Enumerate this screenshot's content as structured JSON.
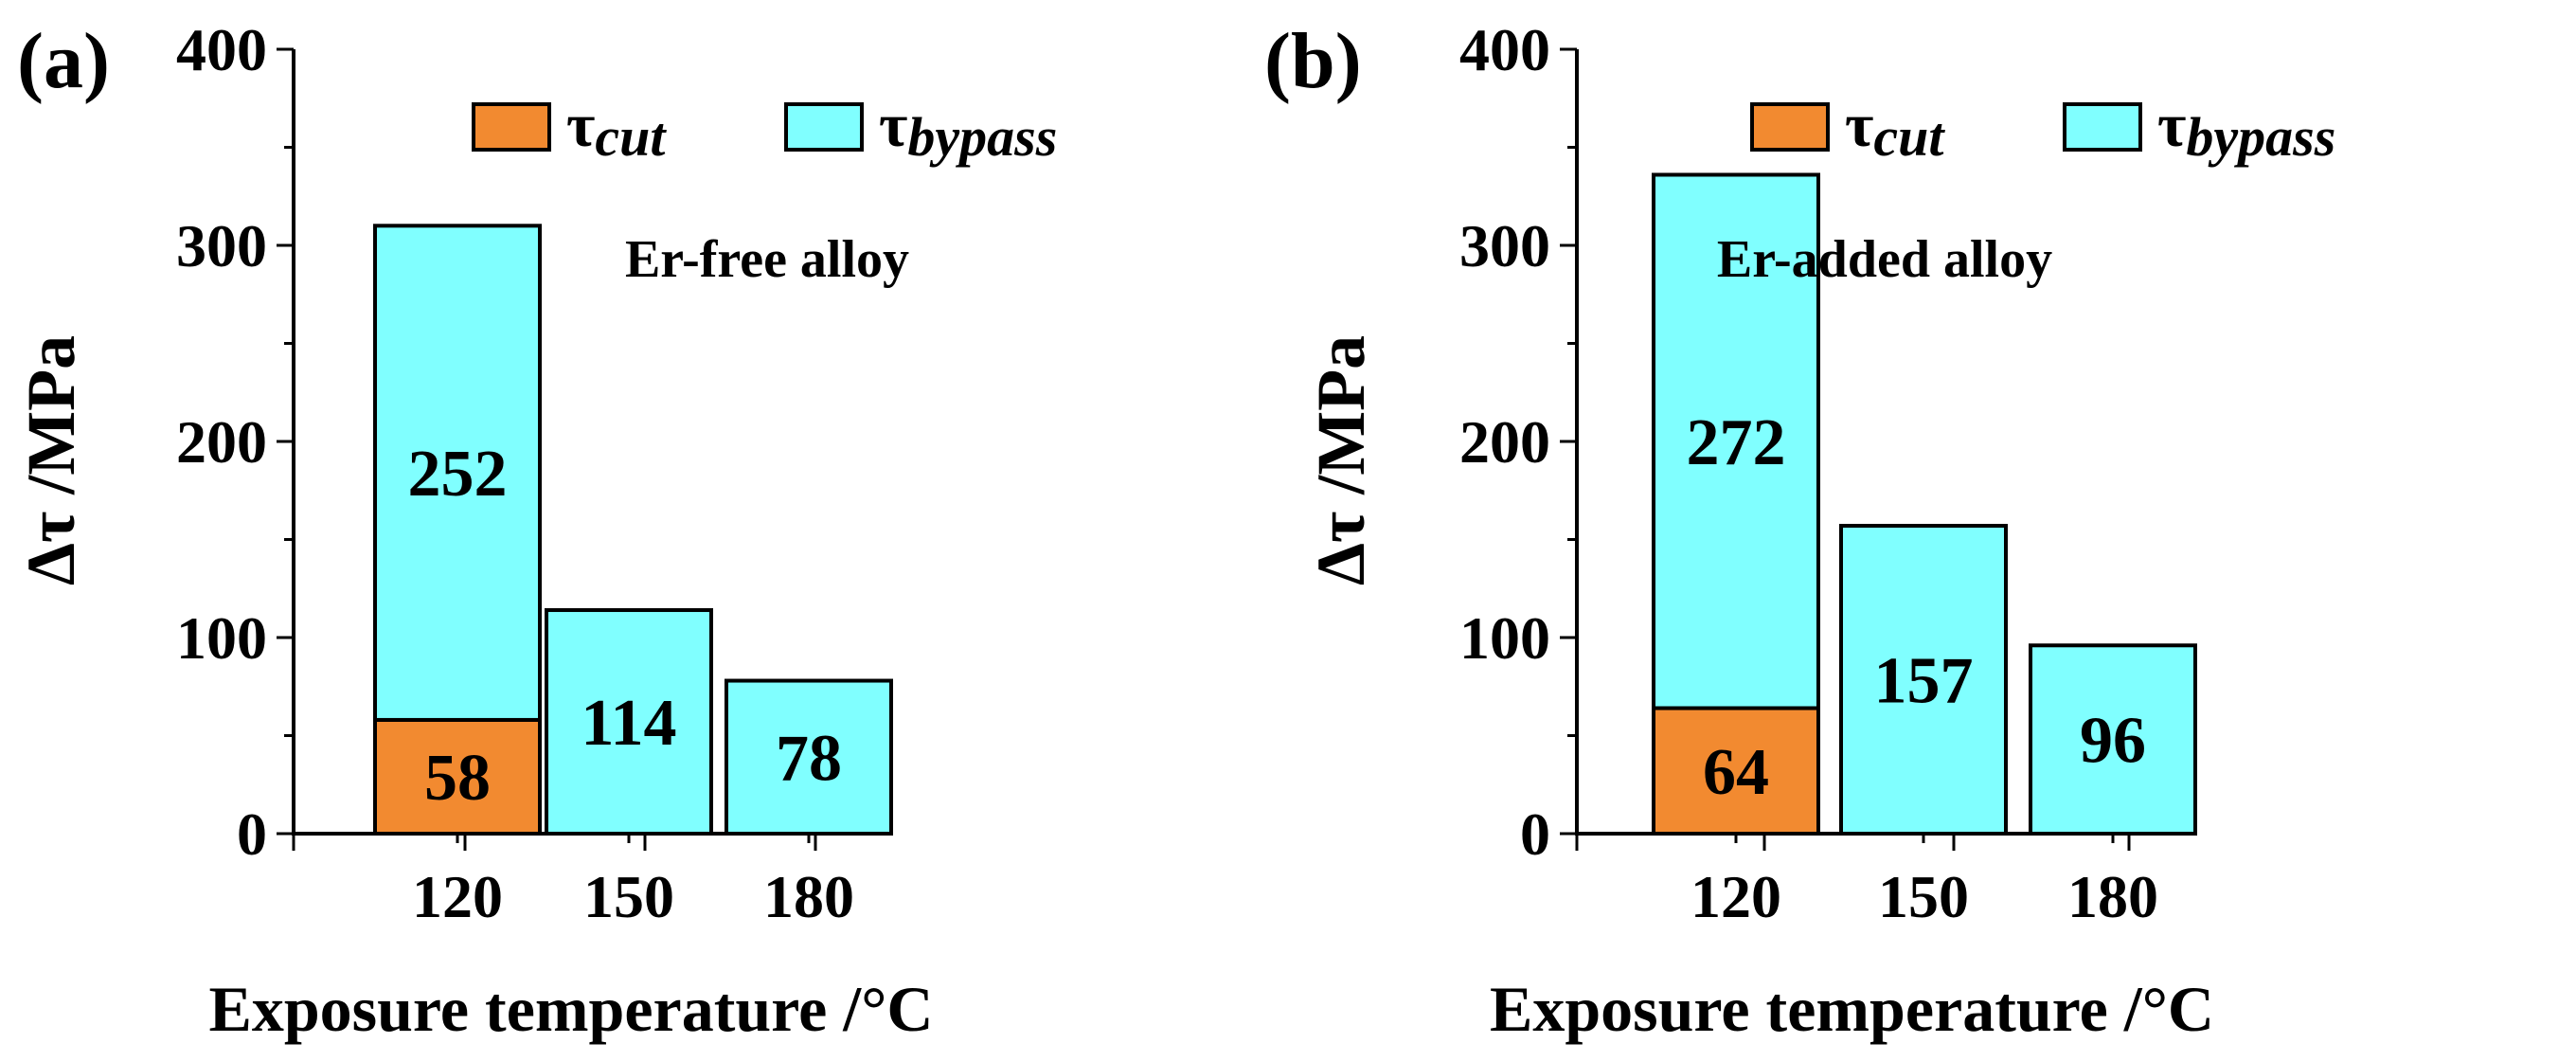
{
  "colors": {
    "cut": "#F28A30",
    "bypass": "#80FFFF",
    "stroke": "#000000"
  },
  "chart_data": [
    {
      "type": "bar",
      "panel_label": "(a)",
      "annotation": "Er-free alloy",
      "xlabel": "Exposure temperature /°C",
      "ylabel": "Δτ /MPa",
      "ylim": [
        0,
        400
      ],
      "yticks": [
        0,
        100,
        200,
        300,
        400
      ],
      "categories": [
        "120",
        "150",
        "180"
      ],
      "legend": {
        "position": "top-center",
        "tau": "τ",
        "cut": "cut",
        "bypass": "bypass"
      },
      "series": [
        {
          "name": "τcut",
          "key": "cut",
          "values": [
            58,
            null,
            null
          ],
          "labels": [
            "58",
            null,
            null
          ]
        },
        {
          "name": "τbypass",
          "key": "bypass",
          "values": [
            252,
            114,
            78
          ],
          "labels": [
            "252",
            "114",
            "78"
          ]
        }
      ]
    },
    {
      "type": "bar",
      "panel_label": "(b)",
      "annotation": "Er-added alloy",
      "xlabel": "Exposure temperature /°C",
      "ylabel": "Δτ /MPa",
      "ylim": [
        0,
        400
      ],
      "yticks": [
        0,
        100,
        200,
        300,
        400
      ],
      "categories": [
        "120",
        "150",
        "180"
      ],
      "legend": {
        "position": "top-center",
        "tau": "τ",
        "cut": "cut",
        "bypass": "bypass"
      },
      "series": [
        {
          "name": "τcut",
          "key": "cut",
          "values": [
            64,
            null,
            null
          ],
          "labels": [
            "64",
            null,
            null
          ]
        },
        {
          "name": "τbypass",
          "key": "bypass",
          "values": [
            272,
            157,
            96
          ],
          "labels": [
            "272",
            "157",
            "96"
          ]
        }
      ]
    }
  ]
}
